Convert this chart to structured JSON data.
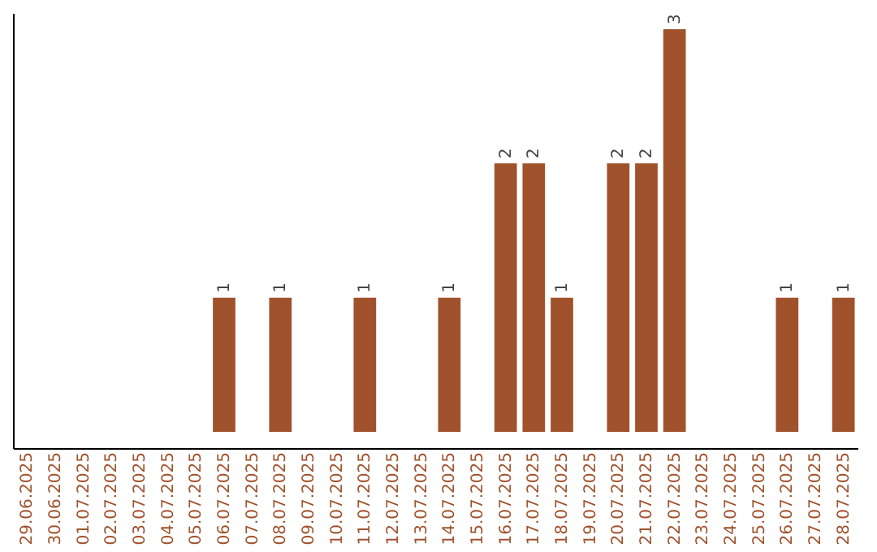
{
  "chart_data": {
    "type": "bar",
    "categories": [
      "29.06.2025",
      "30.06.2025",
      "01.07.2025",
      "02.07.2025",
      "03.07.2025",
      "04.07.2025",
      "05.07.2025",
      "06.07.2025",
      "07.07.2025",
      "08.07.2025",
      "09.07.2025",
      "10.07.2025",
      "11.07.2025",
      "12.07.2025",
      "13.07.2025",
      "14.07.2025",
      "15.07.2025",
      "16.07.2025",
      "17.07.2025",
      "18.07.2025",
      "19.07.2025",
      "20.07.2025",
      "21.07.2025",
      "22.07.2025",
      "23.07.2025",
      "24.07.2025",
      "25.07.2025",
      "26.07.2025",
      "27.07.2025",
      "28.07.2025"
    ],
    "values": [
      0,
      0,
      0,
      0,
      0,
      0,
      0,
      1,
      0,
      1,
      0,
      0,
      1,
      0,
      0,
      1,
      0,
      2,
      2,
      1,
      0,
      2,
      2,
      3,
      0,
      0,
      0,
      1,
      0,
      1
    ],
    "value_labels": [
      null,
      null,
      null,
      null,
      null,
      null,
      null,
      "1",
      null,
      "1",
      null,
      null,
      "1",
      null,
      null,
      "1",
      null,
      "2",
      "2",
      "1",
      null,
      "2",
      "2",
      "3",
      null,
      null,
      null,
      "1",
      null,
      "1"
    ],
    "color": "#a0522d",
    "grid": false,
    "tick_labels": "x"
  }
}
